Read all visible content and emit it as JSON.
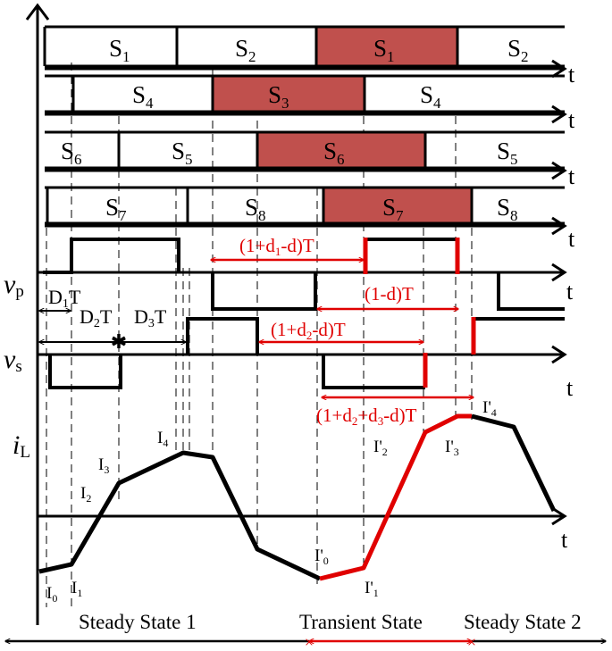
{
  "colors": {
    "line": "#000000",
    "highlight": "#e00000",
    "shaded_block": "#c0504d"
  },
  "signals": {
    "s_row1": [
      "1",
      "2",
      "1",
      "2"
    ],
    "s_row2": [
      "4",
      "3",
      "4"
    ],
    "s_row3": [
      "6",
      "5",
      "6",
      "5"
    ],
    "s_row4": [
      "7",
      "8",
      "7",
      "8"
    ],
    "time_axis": "t",
    "vp_symbol": "v",
    "vp_sub": "p",
    "vs_symbol": "v",
    "vs_sub": "s",
    "il_symbol": "i",
    "il_sub": "L"
  },
  "durations": {
    "d1t": "D",
    "d1t_sub": "1",
    "d2t": "D",
    "d2t_sub": "2",
    "d3t": "D",
    "d3t_sub": "3",
    "T": "T"
  },
  "transient_labels": {
    "l1_a": "(1+d",
    "l1_sub": "1",
    "l1_b": "-d)T",
    "l2": "(1-d)T",
    "l3_a": "(1+d",
    "l3_sub": "2",
    "l3_b": "-d)T",
    "l4_a": "(1+d",
    "l4_sub1": "2",
    "l4_mid": "+d",
    "l4_sub2": "3",
    "l4_b": "-d)T"
  },
  "current_points": {
    "steady": [
      "I",
      "0",
      "1",
      "2",
      "3",
      "4"
    ],
    "transient": [
      "I'",
      "0",
      "1",
      "2",
      "3",
      "4"
    ]
  },
  "states": {
    "steady1": "Steady State 1",
    "transient": "Transient State",
    "steady2": "Steady State 2"
  }
}
